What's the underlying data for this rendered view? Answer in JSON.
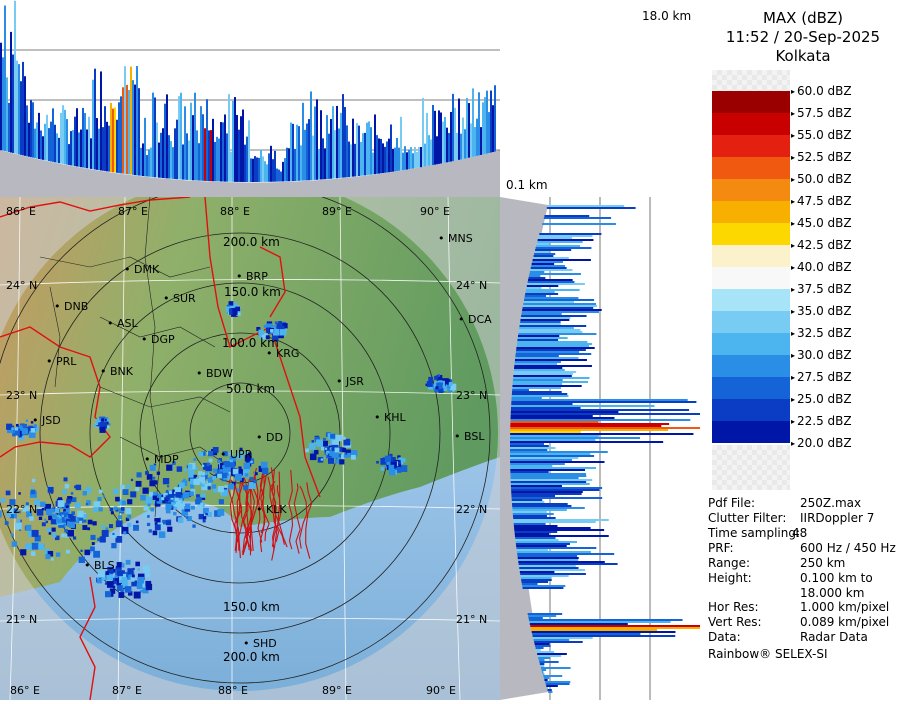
{
  "product": {
    "title": "MAX (dBZ)",
    "time_date": "11:52 / 20-Sep-2025",
    "station": "Kolkata"
  },
  "profile_scale": {
    "max_height": "18.0 km",
    "min_height": "0.1 km"
  },
  "legend": {
    "entries": [
      {
        "label": "60.0 dBZ",
        "color": "#f4f4f4"
      },
      {
        "label": "57.5 dBZ",
        "color": "#9a0000"
      },
      {
        "label": "55.0 dBZ",
        "color": "#c80000"
      },
      {
        "label": "52.5 dBZ",
        "color": "#e42010"
      },
      {
        "label": "50.0 dBZ",
        "color": "#f05a10"
      },
      {
        "label": "47.5 dBZ",
        "color": "#f58a10"
      },
      {
        "label": "45.0 dBZ",
        "color": "#f8b000"
      },
      {
        "label": "42.5 dBZ",
        "color": "#fcd800"
      },
      {
        "label": "40.0 dBZ",
        "color": "#fbf2cc"
      },
      {
        "label": "37.5 dBZ",
        "color": "#f8f8f8"
      },
      {
        "label": "35.0 dBZ",
        "color": "#a8e4f8"
      },
      {
        "label": "32.5 dBZ",
        "color": "#78ccf4"
      },
      {
        "label": "30.0 dBZ",
        "color": "#4cb4ee"
      },
      {
        "label": "27.5 dBZ",
        "color": "#2b8ee6"
      },
      {
        "label": "25.0 dBZ",
        "color": "#1464d8"
      },
      {
        "label": "22.5 dBZ",
        "color": "#0a3cc4"
      },
      {
        "label": "20.0 dBZ",
        "color": "#0016a6"
      }
    ]
  },
  "info": {
    "rows": [
      {
        "key": "Pdf File:",
        "value": "250Z.max"
      },
      {
        "key": "Clutter Filter:",
        "value": "IIRDoppler 7"
      },
      {
        "key": "Time sampling:",
        "value": "48"
      },
      {
        "key": "PRF:",
        "value": "600 Hz / 450 Hz"
      },
      {
        "key": "Range:",
        "value": "250 km"
      },
      {
        "key": "Height:",
        "value": "0.100 km to 18.000 km"
      },
      {
        "key": "Hor Res:",
        "value": "1.000 km/pixel"
      },
      {
        "key": "Vert Res:",
        "value": "0.089 km/pixel"
      },
      {
        "key": "Data:",
        "value": "Radar Data"
      }
    ],
    "footer": "Rainbow® SELEX-SI"
  },
  "map": {
    "lon_labels": [
      "86° E",
      "87° E",
      "88° E",
      "89° E",
      "90° E"
    ],
    "lat_labels": [
      "24° N",
      "23° N",
      "22° N",
      "21° N"
    ],
    "range_rings": [
      "50.0 km",
      "100.0 km",
      "150.0 km",
      "200.0 km"
    ],
    "range_rings_lower": [
      "150.0 km",
      "200.0 km"
    ],
    "cities": [
      {
        "name": "MNS"
      },
      {
        "name": "DMK"
      },
      {
        "name": "BRP"
      },
      {
        "name": "SUR"
      },
      {
        "name": "DNB"
      },
      {
        "name": "ASL"
      },
      {
        "name": "DGP"
      },
      {
        "name": "DCA"
      },
      {
        "name": "KRG"
      },
      {
        "name": "PRL"
      },
      {
        "name": "BNK"
      },
      {
        "name": "BDW"
      },
      {
        "name": "JSR"
      },
      {
        "name": "KHL"
      },
      {
        "name": "JSD"
      },
      {
        "name": "BSL"
      },
      {
        "name": "DD"
      },
      {
        "name": "UPR"
      },
      {
        "name": "MDP"
      },
      {
        "name": "KLK"
      },
      {
        "name": "BLS"
      },
      {
        "name": "SHD"
      }
    ]
  }
}
